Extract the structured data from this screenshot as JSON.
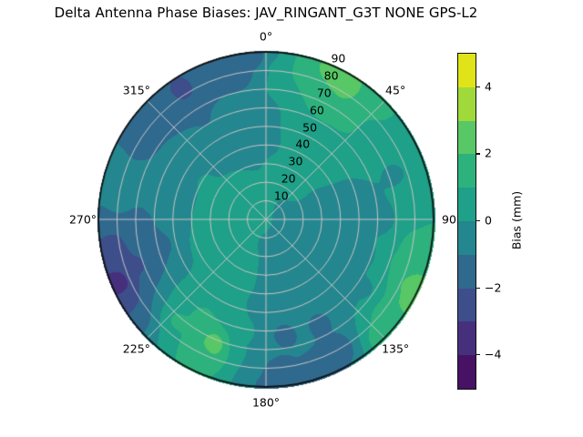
{
  "title": "Delta Antenna Phase Biases: JAV_RINGANT_G3T NONE GPS-L2",
  "chart_data": {
    "type": "polar_contour",
    "title": "Delta Antenna Phase Biases: JAV_RINGANT_G3T NONE GPS-L2",
    "theta_zero_location": "top",
    "theta_direction": "clockwise",
    "theta_ticks": [
      {
        "angle_deg": 0,
        "label": "0°"
      },
      {
        "angle_deg": 45,
        "label": "45°"
      },
      {
        "angle_deg": 90,
        "label": "90"
      },
      {
        "angle_deg": 135,
        "label": "135°"
      },
      {
        "angle_deg": 180,
        "label": "180°"
      },
      {
        "angle_deg": 225,
        "label": "225°"
      },
      {
        "angle_deg": 270,
        "label": "270°"
      },
      {
        "angle_deg": 315,
        "label": "315°"
      }
    ],
    "r_max": 90,
    "r_ticks": [
      {
        "r": 10,
        "label": "10"
      },
      {
        "r": 20,
        "label": "20"
      },
      {
        "r": 30,
        "label": "30"
      },
      {
        "r": 40,
        "label": "40"
      },
      {
        "r": 50,
        "label": "50"
      },
      {
        "r": 60,
        "label": "60"
      },
      {
        "r": 70,
        "label": "70"
      },
      {
        "r": 80,
        "label": "80"
      },
      {
        "r": 90,
        "label": "90"
      }
    ],
    "r_label_angle_deg": 22.5,
    "grid_color": "#c6c6c6",
    "spine_color": "#111111",
    "colorbar": {
      "label": "Bias (mm)",
      "vmin": -5,
      "vmax": 5,
      "level_step": 1,
      "tick_values": [
        4,
        2,
        0,
        -2,
        -4
      ],
      "tick_labels": [
        "4",
        "2",
        "0",
        "−2",
        "−4"
      ],
      "band_colors_low_to_high": [
        "#471164",
        "#46307e",
        "#3d4e8a",
        "#30698e",
        "#24868e",
        "#1fa088",
        "#2db27d",
        "#58c765",
        "#9fda3a",
        "#e0e318"
      ]
    },
    "field_points_az_r_value": [
      [
        0,
        60,
        -0.3
      ],
      [
        357,
        86,
        -1.5
      ],
      [
        350,
        79,
        -1.35
      ],
      [
        2,
        82,
        0.3
      ],
      [
        355,
        45,
        -0.35
      ],
      [
        8,
        30,
        0.05
      ],
      [
        8,
        72,
        0.9
      ],
      [
        15,
        82,
        1.6
      ],
      [
        22,
        87,
        2.3
      ],
      [
        30,
        83,
        2.7
      ],
      [
        36,
        88,
        2.0
      ],
      [
        28,
        72,
        1.75
      ],
      [
        40,
        66,
        1.2
      ],
      [
        48,
        84,
        1.1
      ],
      [
        45,
        55,
        0.35
      ],
      [
        25,
        48,
        0.3
      ],
      [
        55,
        78,
        0.4
      ],
      [
        60,
        60,
        0.1
      ],
      [
        70,
        72,
        -0.1
      ],
      [
        75,
        50,
        -0.3
      ],
      [
        90,
        12,
        -0.3
      ],
      [
        88,
        38,
        -0.5
      ],
      [
        90,
        62,
        -0.35
      ],
      [
        88,
        82,
        0.55
      ],
      [
        95,
        88,
        1.2
      ],
      [
        100,
        84,
        1.7
      ],
      [
        108,
        76,
        1.1
      ],
      [
        114,
        86,
        2.6
      ],
      [
        121,
        88,
        2.3
      ],
      [
        128,
        82,
        1.5
      ],
      [
        136,
        88,
        1.4
      ],
      [
        110,
        55,
        -0.3
      ],
      [
        125,
        65,
        -0.2
      ],
      [
        130,
        40,
        -0.5
      ],
      [
        145,
        55,
        -0.85
      ],
      [
        150,
        80,
        -1.45
      ],
      [
        160,
        88,
        -1.5
      ],
      [
        152,
        62,
        -1.2
      ],
      [
        163,
        47,
        -0.85
      ],
      [
        172,
        62,
        -1.25
      ],
      [
        176,
        82,
        -1.35
      ],
      [
        182,
        88,
        -1.05
      ],
      [
        174,
        30,
        -0.55
      ],
      [
        186,
        50,
        -0.3
      ],
      [
        190,
        68,
        -0.05
      ],
      [
        196,
        58,
        0.7
      ],
      [
        203,
        72,
        2.8
      ],
      [
        207,
        82,
        1.5
      ],
      [
        214,
        62,
        1.35
      ],
      [
        222,
        72,
        1.25
      ],
      [
        220,
        48,
        0.45
      ],
      [
        228,
        60,
        0.35
      ],
      [
        232,
        86,
        -1.2
      ],
      [
        239,
        88,
        -2.7
      ],
      [
        247,
        87,
        -3.85
      ],
      [
        254,
        88,
        -2.9
      ],
      [
        261,
        84,
        -2.45
      ],
      [
        250,
        72,
        -2.25
      ],
      [
        243,
        65,
        -1.0
      ],
      [
        257,
        58,
        -1.25
      ],
      [
        265,
        70,
        -1.6
      ],
      [
        270,
        88,
        -1.15
      ],
      [
        277,
        80,
        -0.75
      ],
      [
        283,
        88,
        -0.5
      ],
      [
        272,
        48,
        -0.05
      ],
      [
        267,
        28,
        0.45
      ],
      [
        250,
        35,
        0.35
      ],
      [
        230,
        28,
        0.5
      ],
      [
        290,
        72,
        -0.95
      ],
      [
        292,
        88,
        -0.7
      ],
      [
        301,
        82,
        -1.45
      ],
      [
        311,
        87,
        -1.65
      ],
      [
        319,
        79,
        -1.75
      ],
      [
        327,
        83,
        -2.35
      ],
      [
        336,
        86,
        -1.85
      ],
      [
        345,
        83,
        -1.55
      ],
      [
        342,
        62,
        -0.85
      ],
      [
        328,
        62,
        -1.05
      ],
      [
        312,
        55,
        -0.65
      ],
      [
        303,
        38,
        0.1
      ],
      [
        318,
        38,
        -0.1
      ],
      [
        335,
        42,
        -0.3
      ],
      [
        270,
        8,
        0.45
      ],
      [
        270,
        18,
        0.5
      ],
      [
        295,
        20,
        0.4
      ],
      [
        240,
        18,
        0.5
      ],
      [
        180,
        12,
        -0.15
      ],
      [
        135,
        20,
        -0.3
      ],
      [
        45,
        20,
        0.05
      ],
      [
        315,
        25,
        0.3
      ],
      [
        200,
        30,
        0.25
      ],
      [
        215,
        40,
        0.45
      ]
    ]
  }
}
